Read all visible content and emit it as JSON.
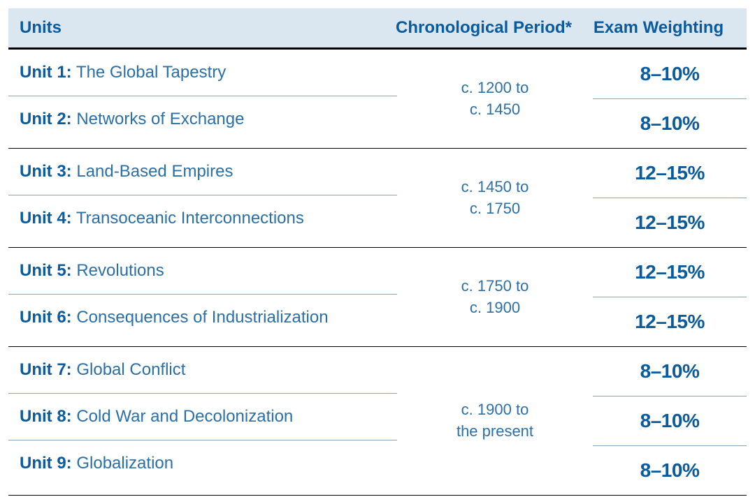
{
  "colors": {
    "header_bg": "#dbe7f0",
    "header_text": "#0a5b9e",
    "unit_label": "#0a5b9e",
    "unit_title": "#2b6fa8",
    "period_text": "#2b6fa8",
    "weight_text": "#0a5b9e",
    "thick_border": "#000000",
    "thin_border": "#8aa4b8",
    "background": "#ffffff"
  },
  "typography": {
    "header_fontsize": 24,
    "unit_fontsize": 24,
    "period_fontsize": 22,
    "weight_fontsize": 28,
    "header_weight": 700,
    "unit_label_weight": 700,
    "weight_val_weight": 800
  },
  "columns": {
    "units_label": "Units",
    "period_label": "Chronological Period*",
    "weight_label": "Exam Weighting",
    "col1_flex": "auto",
    "col2_width": 280,
    "col3_width": 220
  },
  "groups": [
    {
      "period_line1": "c. 1200 to",
      "period_line2": "c. 1450",
      "units": [
        {
          "label": "Unit 1:",
          "title": "The Global Tapestry",
          "weight": "8–10%"
        },
        {
          "label": "Unit 2:",
          "title": "Networks of Exchange",
          "weight": "8–10%"
        }
      ]
    },
    {
      "period_line1": "c. 1450 to",
      "period_line2": "c. 1750",
      "units": [
        {
          "label": "Unit 3:",
          "title": "Land-Based Empires",
          "weight": "12–15%"
        },
        {
          "label": "Unit 4:",
          "title": "Transoceanic Interconnections",
          "weight": "12–15%"
        }
      ]
    },
    {
      "period_line1": "c. 1750 to",
      "period_line2": "c. 1900",
      "units": [
        {
          "label": "Unit 5:",
          "title": "Revolutions",
          "weight": "12–15%"
        },
        {
          "label": "Unit 6:",
          "title": "Consequences of Industrialization",
          "weight": "12–15%"
        }
      ]
    },
    {
      "period_line1": "c. 1900 to",
      "period_line2": "the present",
      "units": [
        {
          "label": "Unit 7:",
          "title": "Global Conflict",
          "weight": "8–10%"
        },
        {
          "label": "Unit 8:",
          "title": "Cold War and Decolonization",
          "weight": "8–10%"
        },
        {
          "label": "Unit 9:",
          "title": "Globalization",
          "weight": "8–10%"
        }
      ]
    }
  ]
}
